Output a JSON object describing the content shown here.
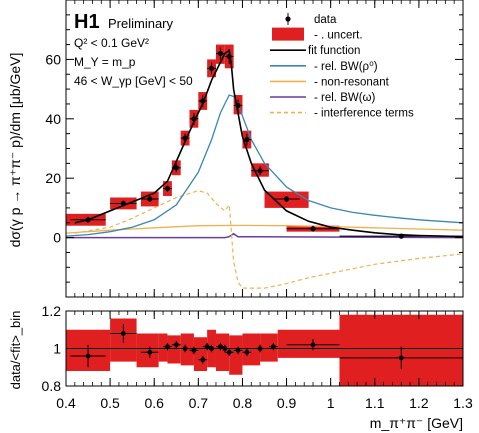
{
  "chart_data": [
    {
      "type": "line",
      "panel": "main",
      "experiment": "H1",
      "status": "Preliminary",
      "cuts": [
        "Q² < 0.1 GeV²",
        "M_Y = m_p",
        "46 < W_γp [GeV] < 50"
      ],
      "ylabel": "dσ(γ p → π⁺π⁻ p)/dm [μb/GeV]",
      "ylim": [
        -20,
        80
      ],
      "yticks": [
        0,
        20,
        40,
        60
      ],
      "xlim": [
        0.4,
        1.3
      ],
      "data": {
        "name": "data",
        "x": [
          0.45,
          0.53,
          0.59,
          0.63,
          0.65,
          0.67,
          0.69,
          0.71,
          0.73,
          0.75,
          0.77,
          0.79,
          0.81,
          0.84,
          0.9,
          0.96,
          1.16
        ],
        "y": [
          6,
          11.5,
          13,
          16.5,
          23.5,
          33.5,
          40,
          46,
          57,
          62,
          61,
          44.5,
          33,
          22.5,
          13,
          3,
          0.5
        ],
        "yerr": [
          1,
          1,
          1,
          1,
          1.5,
          1.5,
          2,
          2,
          2,
          2,
          2.5,
          2,
          2,
          1.5,
          1,
          1,
          0.5
        ],
        "xerr": [
          0.04,
          0.03,
          0.02,
          0.01,
          0.01,
          0.01,
          0.01,
          0.01,
          0.01,
          0.01,
          0.01,
          0.01,
          0.01,
          0.02,
          0.03,
          0.06,
          0.14
        ]
      },
      "uncertainty_bands": [
        {
          "x0": 0.4,
          "x1": 0.49,
          "lo": 4,
          "hi": 8
        },
        {
          "x0": 0.5,
          "x1": 0.56,
          "lo": 9.5,
          "hi": 13.5
        },
        {
          "x0": 0.57,
          "x1": 0.61,
          "lo": 10.5,
          "hi": 15.5
        },
        {
          "x0": 0.62,
          "x1": 0.64,
          "lo": 14,
          "hi": 19
        },
        {
          "x0": 0.64,
          "x1": 0.66,
          "lo": 21,
          "hi": 26
        },
        {
          "x0": 0.66,
          "x1": 0.68,
          "lo": 31,
          "hi": 36
        },
        {
          "x0": 0.68,
          "x1": 0.7,
          "lo": 37,
          "hi": 43
        },
        {
          "x0": 0.7,
          "x1": 0.72,
          "lo": 43,
          "hi": 49
        },
        {
          "x0": 0.72,
          "x1": 0.74,
          "lo": 54,
          "hi": 60
        },
        {
          "x0": 0.74,
          "x1": 0.76,
          "lo": 58.5,
          "hi": 65
        },
        {
          "x0": 0.76,
          "x1": 0.78,
          "lo": 57,
          "hi": 65
        },
        {
          "x0": 0.78,
          "x1": 0.8,
          "lo": 41.5,
          "hi": 48
        },
        {
          "x0": 0.8,
          "x1": 0.82,
          "lo": 30,
          "hi": 36
        },
        {
          "x0": 0.82,
          "x1": 0.86,
          "lo": 20.5,
          "hi": 25
        },
        {
          "x0": 0.85,
          "x1": 0.95,
          "lo": 10,
          "hi": 15.5
        },
        {
          "x0": 0.9,
          "x1": 1.02,
          "lo": 2,
          "hi": 4
        }
      ],
      "legend": [
        {
          "label": "data",
          "style": "marker"
        },
        {
          "label": "- . uncert.",
          "style": "box",
          "color": "#e02020"
        },
        {
          "label": "fit function",
          "style": "line",
          "color": "#000000"
        },
        {
          "label": "- rel. BW(ρ⁰)",
          "style": "line",
          "color": "#3a86b8"
        },
        {
          "label": "- non-resonant",
          "style": "line",
          "color": "#f0b050"
        },
        {
          "label": "- rel. BW(ω)",
          "style": "line",
          "color": "#6a3d9a"
        },
        {
          "label": "- interference terms",
          "style": "dashed",
          "color": "#f0b050"
        }
      ],
      "curves": {
        "fit_function": {
          "x": [
            0.42,
            0.45,
            0.5,
            0.55,
            0.6,
            0.63,
            0.66,
            0.69,
            0.71,
            0.73,
            0.75,
            0.76,
            0.77,
            0.775,
            0.78,
            0.79,
            0.8,
            0.82,
            0.85,
            0.9,
            0.95,
            1.0,
            1.05,
            1.1,
            1.15,
            1.2,
            1.25,
            1.3
          ],
          "y": [
            5,
            6,
            9,
            12,
            15,
            19,
            29,
            39,
            45,
            53,
            59,
            62,
            63,
            58,
            50,
            42,
            34,
            25,
            16,
            9,
            5.5,
            3.5,
            2.5,
            1.6,
            1,
            0.7,
            0.5,
            0.3
          ]
        },
        "rel_BW_rho": {
          "x": [
            0.4,
            0.45,
            0.5,
            0.55,
            0.6,
            0.65,
            0.7,
            0.73,
            0.75,
            0.77,
            0.78,
            0.79,
            0.8,
            0.82,
            0.85,
            0.9,
            0.95,
            1.0,
            1.05,
            1.1,
            1.15,
            1.2,
            1.25,
            1.3
          ],
          "y": [
            0.5,
            1,
            2,
            3.5,
            6,
            11,
            22,
            33,
            42,
            48,
            47.5,
            45,
            41,
            33,
            25,
            17,
            12.5,
            10,
            8.5,
            7.5,
            6.7,
            6,
            5.5,
            5
          ]
        },
        "non_resonant": {
          "x": [
            0.4,
            0.5,
            0.6,
            0.7,
            0.8,
            0.9,
            1.0,
            1.1,
            1.2,
            1.3
          ],
          "y": [
            1.5,
            2.5,
            3.3,
            4,
            4.1,
            4,
            3.7,
            3.3,
            2.9,
            2.5
          ]
        },
        "rel_BW_omega": {
          "x": [
            0.4,
            0.76,
            0.77,
            0.78,
            0.79,
            1.3
          ],
          "y": [
            0,
            0,
            0.3,
            1.3,
            0.3,
            0
          ]
        },
        "interference_terms": {
          "x": [
            0.42,
            0.5,
            0.55,
            0.6,
            0.65,
            0.7,
            0.72,
            0.74,
            0.76,
            0.77,
            0.775,
            0.78,
            0.79,
            0.8,
            0.85,
            0.9,
            0.95,
            1.0,
            1.1,
            1.2,
            1.3
          ],
          "y": [
            1.5,
            3.5,
            6.5,
            10,
            13.5,
            15.8,
            15,
            11.5,
            9,
            11,
            2,
            -8,
            -15,
            -17,
            -17,
            -15.5,
            -13.5,
            -12,
            -9,
            -7,
            -5.5
          ]
        }
      }
    },
    {
      "type": "scatter",
      "panel": "ratio",
      "ylabel": "data/<fit>_bin",
      "xlabel": "m_π⁺π⁻ [GeV]",
      "xlim": [
        0.4,
        1.3
      ],
      "ylim": [
        0.8,
        1.2
      ],
      "xticks": [
        0.4,
        0.5,
        0.6,
        0.7,
        0.8,
        0.9,
        1,
        1.1,
        1.2,
        1.3
      ],
      "xtick_labels": [
        "0.4",
        "0.5",
        "0.6",
        "0.7",
        "0.8",
        "0.9",
        "1",
        "1.1",
        "1.2",
        "1.3"
      ],
      "yticks": [
        0.8,
        1,
        1.2
      ],
      "ytick_labels": [
        "0.8",
        "1",
        "1.2"
      ],
      "reference_line": 1,
      "points": {
        "x": [
          0.45,
          0.53,
          0.59,
          0.63,
          0.65,
          0.67,
          0.69,
          0.71,
          0.72,
          0.73,
          0.75,
          0.76,
          0.77,
          0.79,
          0.81,
          0.84,
          0.87,
          0.96,
          1.16
        ],
        "y": [
          0.96,
          1.08,
          0.98,
          1.01,
          1.02,
          1.0,
          0.99,
          0.94,
          1.01,
          1.0,
          1.01,
          1.0,
          0.98,
          0.99,
          0.98,
          1.0,
          1.01,
          1.02,
          0.95
        ],
        "yerr": [
          0.06,
          0.05,
          0.03,
          0.02,
          0.02,
          0.02,
          0.02,
          0.02,
          0.02,
          0.02,
          0.02,
          0.02,
          0.02,
          0.02,
          0.02,
          0.02,
          0.02,
          0.03,
          0.06
        ],
        "xerr": [
          0.04,
          0.03,
          0.02,
          0.01,
          0.01,
          0.01,
          0.01,
          0.01,
          0.01,
          0.01,
          0.01,
          0.01,
          0.01,
          0.01,
          0.01,
          0.01,
          0.01,
          0.06,
          0.14
        ]
      },
      "uncertainty_bands": [
        {
          "x0": 0.4,
          "x1": 0.5,
          "lo": 0.88,
          "hi": 1.1
        },
        {
          "x0": 0.5,
          "x1": 0.56,
          "lo": 0.93,
          "hi": 1.16
        },
        {
          "x0": 0.56,
          "x1": 0.61,
          "lo": 0.9,
          "hi": 1.08
        },
        {
          "x0": 0.61,
          "x1": 0.63,
          "lo": 0.93,
          "hi": 1.08
        },
        {
          "x0": 0.63,
          "x1": 0.66,
          "lo": 0.92,
          "hi": 1.07
        },
        {
          "x0": 0.66,
          "x1": 0.69,
          "lo": 0.91,
          "hi": 1.08
        },
        {
          "x0": 0.69,
          "x1": 0.72,
          "lo": 0.88,
          "hi": 1.06
        },
        {
          "x0": 0.72,
          "x1": 0.74,
          "lo": 0.9,
          "hi": 1.1
        },
        {
          "x0": 0.74,
          "x1": 0.77,
          "lo": 0.88,
          "hi": 1.08
        },
        {
          "x0": 0.77,
          "x1": 0.8,
          "lo": 0.86,
          "hi": 1.07
        },
        {
          "x0": 0.8,
          "x1": 0.84,
          "lo": 0.91,
          "hi": 1.08
        },
        {
          "x0": 0.84,
          "x1": 0.88,
          "lo": 0.93,
          "hi": 1.08
        },
        {
          "x0": 0.88,
          "x1": 1.02,
          "lo": 0.95,
          "hi": 1.1
        },
        {
          "x0": 1.02,
          "x1": 1.3,
          "lo": 0.8,
          "hi": 1.18
        }
      ]
    }
  ],
  "text": {
    "experiment": "H1",
    "status": "Preliminary",
    "cut_q2": "Q² < 0.1 GeV²",
    "cut_my": "M_Y = m_p",
    "cut_w": "46 < W_γp [GeV] < 50",
    "main_ylabel": "dσ(γ p → π⁺π⁻ p)/dm [μb/GeV]",
    "ratio_ylabel": "data/<fit>_bin",
    "xlabel": "m_π⁺π⁻ [GeV]"
  }
}
